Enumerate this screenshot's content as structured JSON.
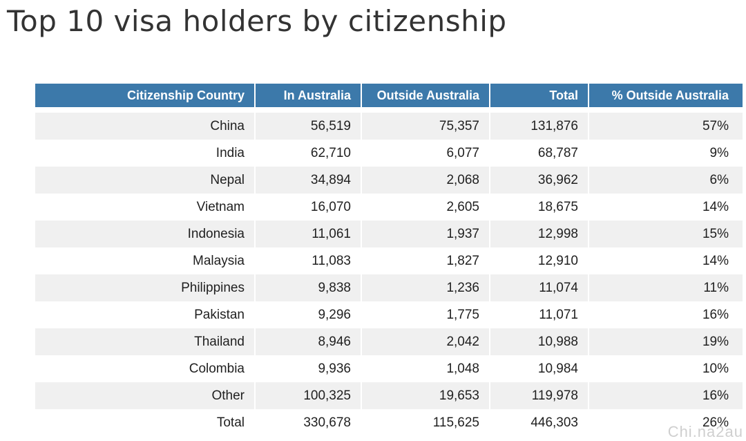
{
  "title": "Top 10 visa holders by citizenship",
  "watermark": "Chi.na2au",
  "colors": {
    "header_bg": "#3c79aa",
    "header_text": "#ffffff",
    "zebra": "#f0f0f0"
  },
  "chart_data": {
    "type": "table",
    "title": "Top 10 visa holders by citizenship",
    "columns": [
      "Citizenship Country",
      "In Australia",
      "Outside Australia",
      "Total",
      "% Outside Australia"
    ],
    "rows": [
      [
        "China",
        "56,519",
        "75,357",
        "131,876",
        "57%"
      ],
      [
        "India",
        "62,710",
        "6,077",
        "68,787",
        "9%"
      ],
      [
        "Nepal",
        "34,894",
        "2,068",
        "36,962",
        "6%"
      ],
      [
        "Vietnam",
        "16,070",
        "2,605",
        "18,675",
        "14%"
      ],
      [
        "Indonesia",
        "11,061",
        "1,937",
        "12,998",
        "15%"
      ],
      [
        "Malaysia",
        "11,083",
        "1,827",
        "12,910",
        "14%"
      ],
      [
        "Philippines",
        "9,838",
        "1,236",
        "11,074",
        "11%"
      ],
      [
        "Pakistan",
        "9,296",
        "1,775",
        "11,071",
        "16%"
      ],
      [
        "Thailand",
        "8,946",
        "2,042",
        "10,988",
        "19%"
      ],
      [
        "Colombia",
        "9,936",
        "1,048",
        "10,984",
        "10%"
      ],
      [
        "Other",
        "100,325",
        "19,653",
        "119,978",
        "16%"
      ],
      [
        "Total",
        "330,678",
        "115,625",
        "446,303",
        "26%"
      ]
    ]
  }
}
